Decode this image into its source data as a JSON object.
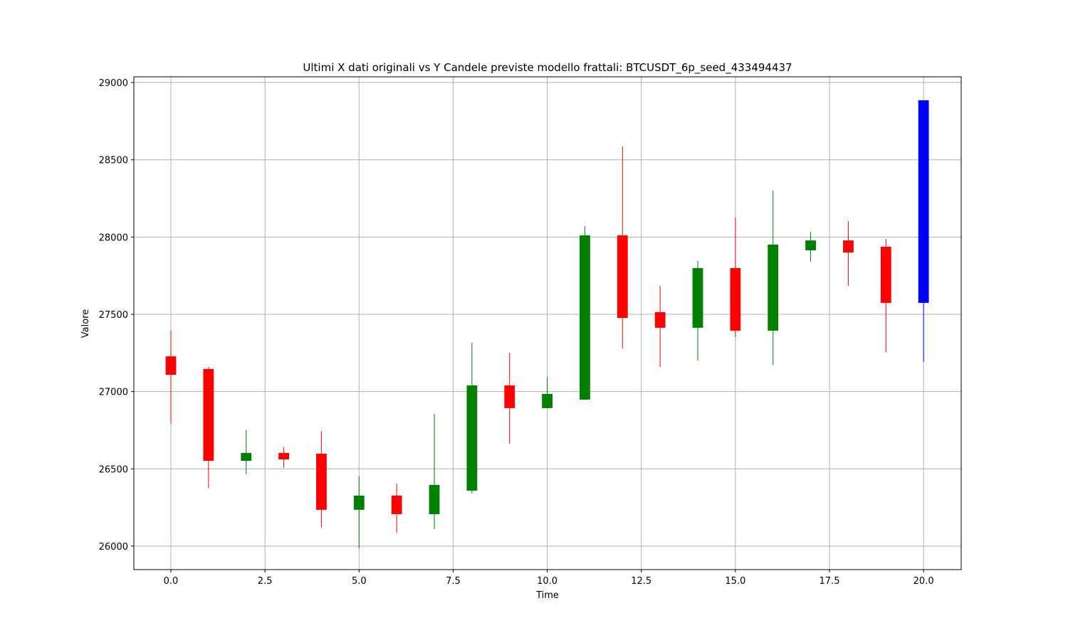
{
  "chart_data": {
    "type": "candlestick",
    "title": "Ultimi X dati originali vs Y Candele previste modello frattali: BTCUSDT_6p_seed_433494437",
    "xlabel": "Time",
    "ylabel": "Valore",
    "x": [
      0,
      1,
      2,
      3,
      4,
      5,
      6,
      7,
      8,
      9,
      10,
      11,
      12,
      13,
      14,
      15,
      16,
      17,
      18,
      19,
      20
    ],
    "open": [
      27228,
      27146,
      26552,
      26603,
      26598,
      26235,
      26327,
      26207,
      26359,
      27040,
      26893,
      26948,
      28011,
      27514,
      27413,
      27799,
      27394,
      27914,
      27978,
      27937,
      27574
    ],
    "high": [
      27394,
      27159,
      26750,
      26640,
      26745,
      26451,
      26405,
      26856,
      27316,
      27251,
      27095,
      28070,
      28586,
      27684,
      27845,
      28126,
      28301,
      28034,
      28103,
      27988,
      28885
    ],
    "low": [
      26791,
      26377,
      26465,
      26506,
      26120,
      25986,
      26087,
      26110,
      26340,
      26663,
      26893,
      26948,
      27279,
      27159,
      27201,
      27353,
      27173,
      27840,
      27684,
      27256,
      27192
    ],
    "close": [
      27109,
      26552,
      26603,
      26561,
      26235,
      26327,
      26207,
      26396,
      27040,
      26893,
      26985,
      28011,
      27477,
      27413,
      27799,
      27394,
      27951,
      27978,
      27900,
      27574,
      28885
    ],
    "colors": [
      "red",
      "red",
      "green",
      "red",
      "red",
      "green",
      "red",
      "green",
      "green",
      "red",
      "green",
      "green",
      "red",
      "red",
      "green",
      "red",
      "green",
      "green",
      "red",
      "red",
      "blue"
    ],
    "xlim": [
      -0.984,
      21.0
    ],
    "ylim": [
      25848,
      29037
    ],
    "xticks": [
      {
        "value": 0,
        "label": "0.0"
      },
      {
        "value": 2.5,
        "label": "2.5"
      },
      {
        "value": 5,
        "label": "5.0"
      },
      {
        "value": 7.5,
        "label": "7.5"
      },
      {
        "value": 10,
        "label": "10.0"
      },
      {
        "value": 12.5,
        "label": "12.5"
      },
      {
        "value": 15,
        "label": "15.0"
      },
      {
        "value": 17.5,
        "label": "17.5"
      },
      {
        "value": 20,
        "label": "20.0"
      }
    ],
    "yticks": [
      26000,
      26500,
      27000,
      27500,
      28000,
      28500,
      29000
    ],
    "grid": true
  }
}
